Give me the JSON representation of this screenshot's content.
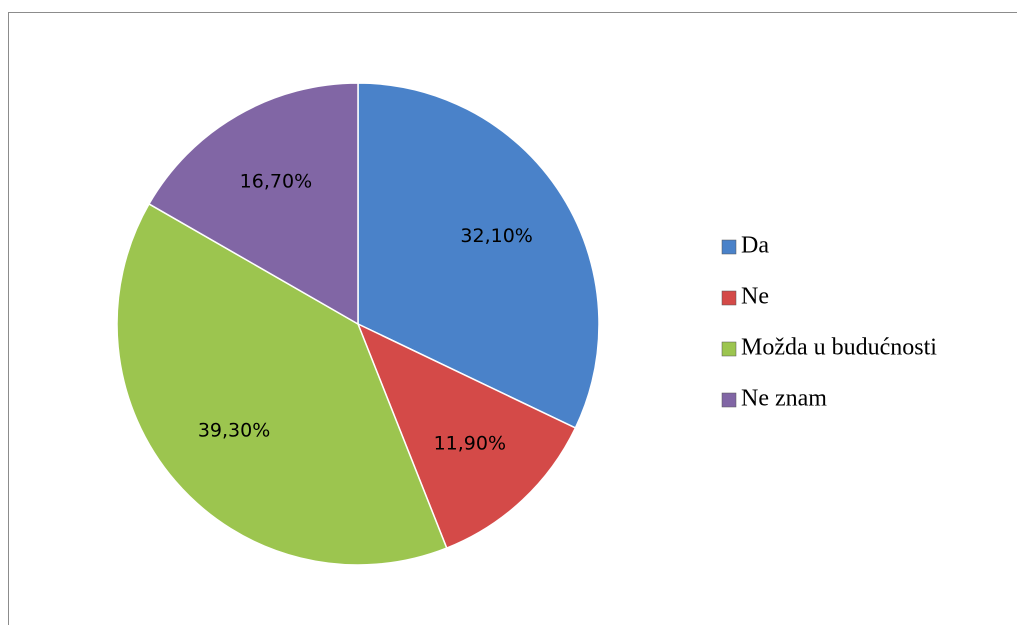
{
  "chart_data": {
    "type": "pie",
    "categories": [
      "Da",
      "Ne",
      "Možda u budućnosti",
      "Ne znam"
    ],
    "values": [
      32.1,
      11.9,
      39.3,
      16.7
    ],
    "value_labels": [
      "32,10%",
      "11,90%",
      "39,30%",
      "16,70%"
    ],
    "colors": [
      "#4a82c9",
      "#d44a48",
      "#9cc54f",
      "#8166a5"
    ],
    "legend": "right"
  }
}
